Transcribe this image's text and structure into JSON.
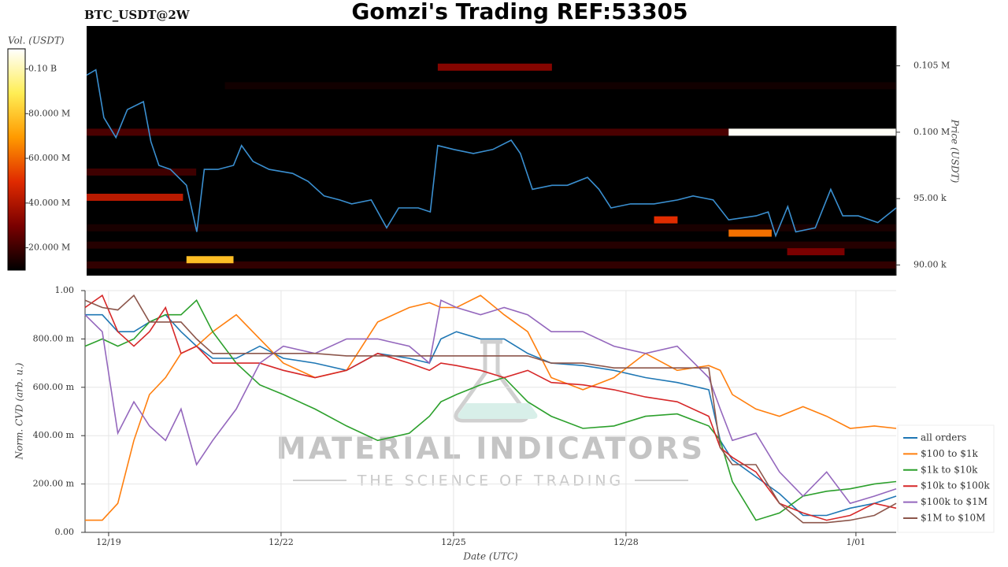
{
  "title": "Gomzi's Trading REF:53305",
  "chart_data": [
    {
      "type": "heatmap",
      "title": "BTC_USDT@2W",
      "ylabel": "Price (USDT)",
      "xlim": [
        18.59,
        32.7
      ],
      "ylim": [
        89200,
        108000
      ],
      "yticks": [
        {
          "value": 90000,
          "label": "90.00 k"
        },
        {
          "value": 95000,
          "label": "95.00 k"
        },
        {
          "value": 100000,
          "label": "0.100 M"
        },
        {
          "value": 105000,
          "label": "0.105 M"
        }
      ],
      "colorbar": {
        "label": "Vol. (USDT)",
        "lim": [
          10000000,
          109000000
        ],
        "ticks": [
          {
            "value": 20000000,
            "label": "20.000 M"
          },
          {
            "value": 40000000,
            "label": "40.000 M"
          },
          {
            "value": 60000000,
            "label": "60.000 M"
          },
          {
            "value": 80000000,
            "label": "80.000 M"
          },
          {
            "value": 100000000,
            "label": "0.10 B"
          }
        ],
        "colorscale": [
          "#000000",
          "#7a0000",
          "#e02a00",
          "#ff9a00",
          "#ffee55",
          "#ffffff"
        ]
      },
      "bands": [
        {
          "price": 91500,
          "from": 18.59,
          "to": 32.7,
          "volume": 16000000
        },
        {
          "price": 90000,
          "from": 18.59,
          "to": 32.7,
          "volume": 18000000
        },
        {
          "price": 92800,
          "from": 18.59,
          "to": 32.7,
          "volume": 14000000
        },
        {
          "price": 103500,
          "from": 21.0,
          "to": 32.7,
          "volume": 13000000
        },
        {
          "price": 97000,
          "from": 18.59,
          "to": 20.5,
          "volume": 20000000
        },
        {
          "price": 100000,
          "from": 18.59,
          "to": 29.78,
          "volume": 22000000
        },
        {
          "price": 104900,
          "from": 24.71,
          "to": 26.7,
          "volume": 32000000
        },
        {
          "price": 91000,
          "from": 30.8,
          "to": 31.8,
          "volume": 30000000
        },
        {
          "price": 95100,
          "from": 18.59,
          "to": 20.27,
          "volume": 42000000
        },
        {
          "price": 93400,
          "from": 28.48,
          "to": 28.89,
          "volume": 50000000
        },
        {
          "price": 92400,
          "from": 29.78,
          "to": 30.53,
          "volume": 62000000
        },
        {
          "price": 90400,
          "from": 20.33,
          "to": 21.15,
          "volume": 78000000
        },
        {
          "price": 100000,
          "from": 29.78,
          "to": 32.7,
          "volume": 108000000
        }
      ],
      "price": {
        "color": "#3a8fd0",
        "x": [
          18.59,
          18.75,
          18.89,
          19.1,
          19.3,
          19.58,
          19.71,
          19.85,
          20.05,
          20.33,
          20.51,
          20.64,
          20.88,
          21.15,
          21.29,
          21.49,
          21.77,
          22.18,
          22.45,
          22.73,
          23.0,
          23.21,
          23.55,
          23.82,
          24.03,
          24.37,
          24.58,
          24.71,
          24.99,
          25.33,
          25.67,
          25.99,
          26.15,
          26.36,
          26.7,
          26.97,
          27.32,
          27.52,
          27.73,
          28.07,
          28.48,
          28.89,
          29.16,
          29.51,
          29.78,
          30.26,
          30.47,
          30.6,
          30.81,
          30.95,
          31.29,
          31.56,
          31.77,
          32.04,
          32.38,
          32.7
        ],
        "values": [
          104300,
          104700,
          101100,
          99600,
          101700,
          102300,
          99300,
          97500,
          97200,
          96000,
          92500,
          97200,
          97200,
          97500,
          99000,
          97800,
          97200,
          96900,
          96300,
          95200,
          94900,
          94600,
          94900,
          92800,
          94300,
          94300,
          94000,
          99000,
          98700,
          98400,
          98700,
          99400,
          98400,
          95700,
          96000,
          96000,
          96600,
          95700,
          94300,
          94600,
          94600,
          94900,
          95200,
          94900,
          93400,
          93700,
          94000,
          92200,
          94400,
          92500,
          92800,
          95700,
          93700,
          93700,
          93200,
          94300
        ]
      }
    },
    {
      "type": "line",
      "xlabel": "Date (UTC)",
      "ylabel": "Norm. CVD (arb. u.)",
      "grid": true,
      "legend": "right",
      "xlim": [
        18.59,
        32.7
      ],
      "ylim": [
        0,
        1
      ],
      "xticks": [
        {
          "value": 19,
          "label": "12/19"
        },
        {
          "value": 22,
          "label": "12/22"
        },
        {
          "value": 25,
          "label": "12/25"
        },
        {
          "value": 28,
          "label": "12/28"
        },
        {
          "value": 32,
          "label": "1/01"
        }
      ],
      "yticks": [
        {
          "value": 0,
          "label": "0.00"
        },
        {
          "value": 0.2,
          "label": "200.00 m"
        },
        {
          "value": 0.4,
          "label": "400.00 m"
        },
        {
          "value": 0.6,
          "label": "600.00 m"
        },
        {
          "value": 0.8,
          "label": "800.00 m"
        },
        {
          "value": 1,
          "label": "1.00"
        }
      ],
      "watermark": {
        "title": "MATERIAL INDICATORS",
        "subtitle": "THE SCIENCE OF TRADING"
      },
      "x": [
        18.59,
        18.89,
        19.16,
        19.44,
        19.71,
        19.99,
        20.26,
        20.53,
        20.81,
        21.22,
        21.63,
        22.04,
        22.59,
        23.14,
        23.68,
        24.23,
        24.58,
        24.78,
        25.05,
        25.47,
        25.88,
        26.29,
        26.7,
        27.25,
        27.79,
        28.34,
        28.89,
        29.44,
        29.64,
        29.85,
        30.26,
        30.67,
        31.08,
        31.49,
        31.9,
        32.32,
        32.7
      ],
      "series": [
        {
          "name": "all orders",
          "color": "#1f77b4",
          "values": [
            0.9,
            0.9,
            0.83,
            0.83,
            0.87,
            0.9,
            0.83,
            0.77,
            0.72,
            0.72,
            0.77,
            0.72,
            0.7,
            0.67,
            0.74,
            0.72,
            0.7,
            0.8,
            0.83,
            0.8,
            0.8,
            0.74,
            0.7,
            0.69,
            0.67,
            0.64,
            0.62,
            0.59,
            0.38,
            0.3,
            0.23,
            0.16,
            0.07,
            0.07,
            0.1,
            0.12,
            0.15
          ]
        },
        {
          "name": "$100 to $1k",
          "color": "#ff7f0e",
          "values": [
            0.05,
            0.05,
            0.12,
            0.38,
            0.57,
            0.64,
            0.74,
            0.77,
            0.83,
            0.9,
            0.8,
            0.7,
            0.64,
            0.67,
            0.87,
            0.93,
            0.95,
            0.93,
            0.93,
            0.98,
            0.9,
            0.83,
            0.64,
            0.59,
            0.64,
            0.74,
            0.67,
            0.69,
            0.67,
            0.57,
            0.51,
            0.48,
            0.52,
            0.48,
            0.43,
            0.44,
            0.43
          ]
        },
        {
          "name": "$1k to $10k",
          "color": "#2ca02c",
          "values": [
            0.77,
            0.8,
            0.77,
            0.8,
            0.87,
            0.9,
            0.9,
            0.96,
            0.83,
            0.7,
            0.61,
            0.57,
            0.51,
            0.44,
            0.38,
            0.41,
            0.48,
            0.54,
            0.57,
            0.61,
            0.64,
            0.54,
            0.48,
            0.43,
            0.44,
            0.48,
            0.49,
            0.44,
            0.38,
            0.21,
            0.05,
            0.08,
            0.15,
            0.17,
            0.18,
            0.2,
            0.21
          ]
        },
        {
          "name": "$10k to $100k",
          "color": "#d62728",
          "values": [
            0.93,
            0.98,
            0.83,
            0.77,
            0.83,
            0.93,
            0.74,
            0.77,
            0.7,
            0.7,
            0.7,
            0.67,
            0.64,
            0.67,
            0.74,
            0.7,
            0.67,
            0.7,
            0.69,
            0.67,
            0.64,
            0.67,
            0.62,
            0.61,
            0.59,
            0.56,
            0.54,
            0.48,
            0.35,
            0.31,
            0.25,
            0.12,
            0.08,
            0.05,
            0.07,
            0.12,
            0.1
          ]
        },
        {
          "name": "$100k to $1M",
          "color": "#9467bd",
          "values": [
            0.9,
            0.83,
            0.41,
            0.54,
            0.44,
            0.38,
            0.51,
            0.28,
            0.38,
            0.51,
            0.7,
            0.77,
            0.74,
            0.8,
            0.8,
            0.77,
            0.7,
            0.96,
            0.93,
            0.9,
            0.93,
            0.9,
            0.83,
            0.83,
            0.77,
            0.74,
            0.77,
            0.64,
            0.51,
            0.38,
            0.41,
            0.25,
            0.15,
            0.25,
            0.12,
            0.15,
            0.18
          ]
        },
        {
          "name": "$1M to $10M",
          "color": "#8c564b",
          "values": [
            0.96,
            0.93,
            0.92,
            0.98,
            0.87,
            0.87,
            0.87,
            0.8,
            0.74,
            0.74,
            0.74,
            0.74,
            0.74,
            0.73,
            0.73,
            0.73,
            0.73,
            0.73,
            0.73,
            0.73,
            0.73,
            0.73,
            0.7,
            0.7,
            0.68,
            0.68,
            0.68,
            0.68,
            0.35,
            0.28,
            0.28,
            0.12,
            0.04,
            0.04,
            0.05,
            0.07,
            0.12
          ]
        }
      ]
    }
  ]
}
